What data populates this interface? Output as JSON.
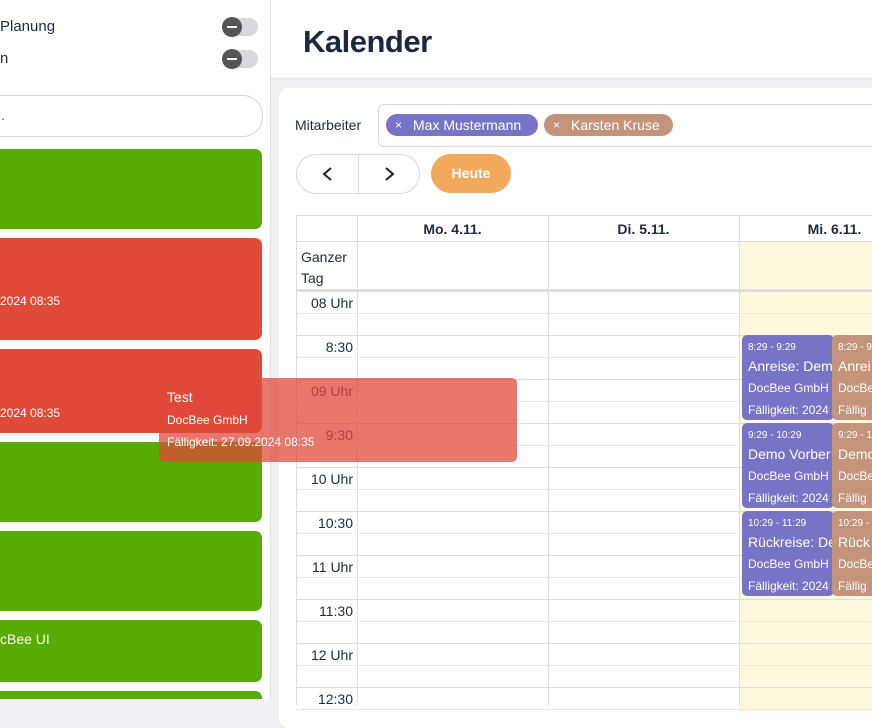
{
  "sidebar": {
    "toggles": [
      "Planung",
      "n"
    ],
    "search_placeholder": ".",
    "cards": [
      {
        "color": "#58ab00"
      },
      {
        "color": "#e04a3a",
        "text": "2024 08:35"
      },
      {
        "color": "#e04a3a",
        "text": "2024 08:35"
      },
      {
        "color": "#58ab00"
      },
      {
        "color": "#58ab00"
      },
      {
        "color": "#58ab00",
        "text": "cBee UI"
      },
      {
        "color": "#58ab00"
      }
    ]
  },
  "drag_preview": {
    "title": "Test",
    "company": "DocBee GmbH",
    "due": "Fälligkeit: 27.09.2024 08:35"
  },
  "header": {
    "title": "Kalender"
  },
  "filter": {
    "label": "Mitarbeiter",
    "chips": [
      {
        "name": "Max Mustermann",
        "color": "#7773c6"
      },
      {
        "name": "Karsten Kruse",
        "color": "#c39479"
      }
    ]
  },
  "toolbar": {
    "today": "Heute"
  },
  "calendar": {
    "days": [
      "Mo. 4.11.",
      "Di. 5.11.",
      "Mi. 6.11."
    ],
    "all_day": "Ganzer Tag",
    "times": [
      "08 Uhr",
      "8:30",
      "09 Uhr",
      "9:30",
      "10 Uhr",
      "10:30",
      "11 Uhr",
      "11:30",
      "12 Uhr",
      "12:30"
    ],
    "event_columns": [
      {
        "color": "#7773c6",
        "events": [
          {
            "time": "8:29 - 9:29",
            "title": "Anreise: Dem",
            "company": "DocBee GmbH",
            "due": "Fälligkeit: 2024"
          },
          {
            "time": "9:29 - 10:29",
            "title": "Demo Vorber",
            "company": "DocBee GmbH",
            "due": "Fälligkeit: 2024"
          },
          {
            "time": "10:29 - 11:29",
            "title": "Rückreise: De",
            "company": "DocBee GmbH",
            "due": "Fälligkeit: 2024"
          }
        ]
      },
      {
        "color": "#c39479",
        "events": [
          {
            "time": "8:29 - 9",
            "title": "Anrei",
            "company": "DocBe",
            "due": "Fällig"
          },
          {
            "time": "9:29 - 1",
            "title": "Demo",
            "company": "DocBe",
            "due": "Fällig"
          },
          {
            "time": "10:29 -",
            "title": "Rück",
            "company": "DocBe",
            "due": "Fällig"
          }
        ]
      }
    ]
  }
}
